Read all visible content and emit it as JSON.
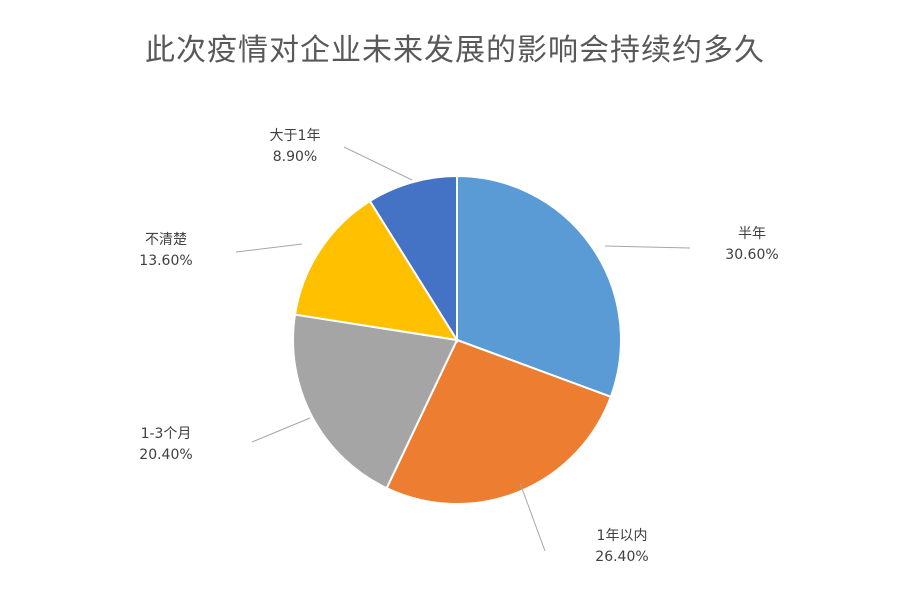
{
  "chart_data": {
    "type": "pie",
    "title": "此次疫情对企业未来发展的影响会持续约多久",
    "slices": [
      {
        "label": "半年",
        "value": 30.6,
        "display": "30.60%",
        "color": "#5b9bd5"
      },
      {
        "label": "1年以内",
        "value": 26.4,
        "display": "26.40%",
        "color": "#ed7d31"
      },
      {
        "label": "1-3个月",
        "value": 20.4,
        "display": "20.40%",
        "color": "#a5a5a5"
      },
      {
        "label": "不清楚",
        "value": 13.6,
        "display": "13.60%",
        "color": "#ffc000"
      },
      {
        "label": "大于1年",
        "value": 8.9,
        "display": "8.90%",
        "color": "#4472c4"
      }
    ],
    "start": "12 o'clock",
    "direction": "clockwise",
    "legend": "none",
    "data_labels": "outside with leader lines"
  }
}
